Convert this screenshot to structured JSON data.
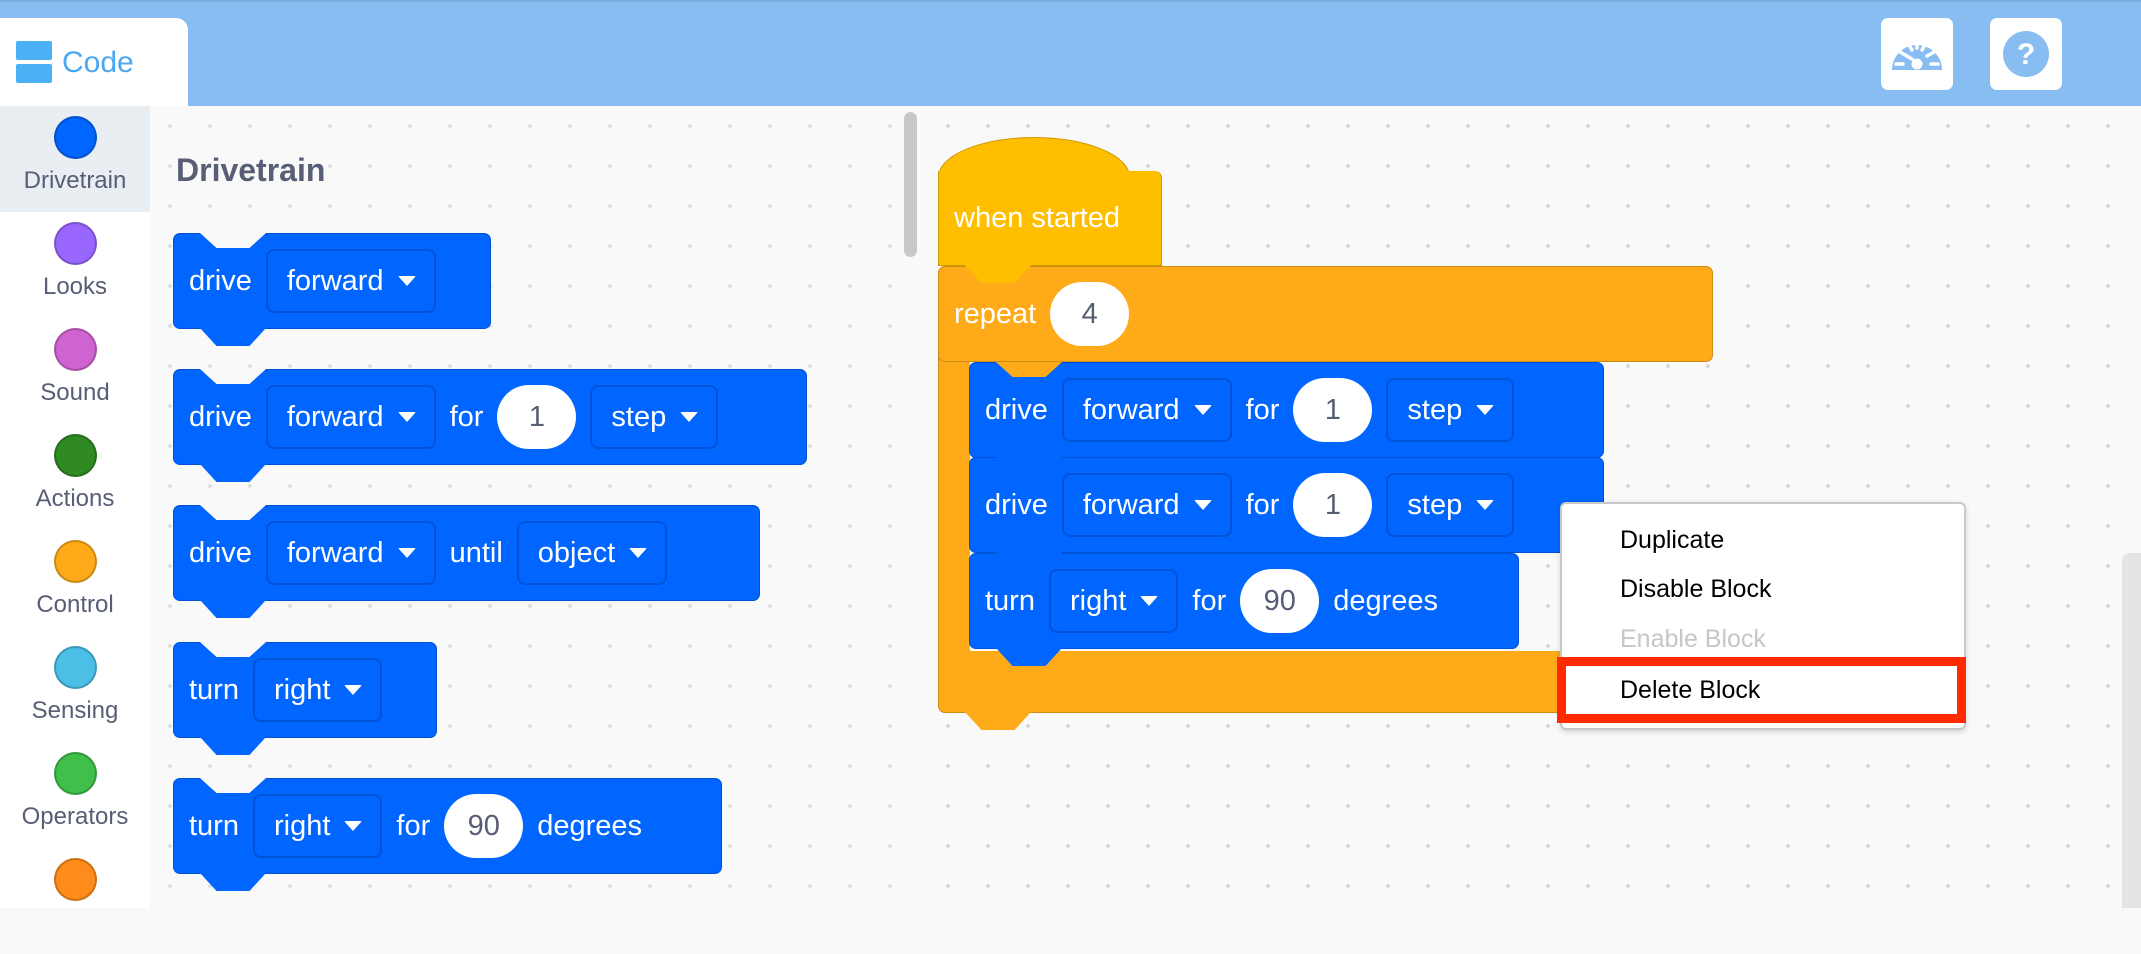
{
  "header": {
    "tab_label": "Code",
    "tab_icon": "code-blocks-icon",
    "buttons": [
      {
        "name": "dashboard-button",
        "icon": "speedometer-icon"
      },
      {
        "name": "help-button",
        "icon": "question-mark-icon"
      }
    ],
    "background": "#87bdf0"
  },
  "sidebar": {
    "selected": "Drivetrain",
    "categories": [
      {
        "label": "Drivetrain",
        "color": "#0066ff"
      },
      {
        "label": "Looks",
        "color": "#9966ff"
      },
      {
        "label": "Sound",
        "color": "#cf63cf"
      },
      {
        "label": "Actions",
        "color": "#2f8a24"
      },
      {
        "label": "Control",
        "color": "#ffab19"
      },
      {
        "label": "Sensing",
        "color": "#4cbfe6"
      },
      {
        "label": "Operators",
        "color": "#40bf4a"
      },
      {
        "label": "",
        "color": "#ff8c1a"
      }
    ]
  },
  "flyout": {
    "title": "Drivetrain",
    "blocks": [
      [
        {
          "t": "text",
          "v": "drive"
        },
        {
          "t": "dropdown",
          "v": "forward"
        }
      ],
      [
        {
          "t": "text",
          "v": "drive"
        },
        {
          "t": "dropdown",
          "v": "forward"
        },
        {
          "t": "text",
          "v": "for"
        },
        {
          "t": "number",
          "v": "1"
        },
        {
          "t": "dropdown",
          "v": "step"
        }
      ],
      [
        {
          "t": "text",
          "v": "drive"
        },
        {
          "t": "dropdown",
          "v": "forward"
        },
        {
          "t": "text",
          "v": "until"
        },
        {
          "t": "dropdown",
          "v": "object"
        }
      ],
      [
        {
          "t": "text",
          "v": "turn"
        },
        {
          "t": "dropdown",
          "v": "right"
        }
      ],
      [
        {
          "t": "text",
          "v": "turn"
        },
        {
          "t": "dropdown",
          "v": "right"
        },
        {
          "t": "text",
          "v": "for"
        },
        {
          "t": "number",
          "v": "90"
        },
        {
          "t": "text",
          "v": "degrees"
        }
      ]
    ]
  },
  "workspace": {
    "hat_label": "when started",
    "repeat": [
      {
        "t": "text",
        "v": "repeat"
      },
      {
        "t": "number",
        "v": "4"
      }
    ],
    "inner_blocks": [
      [
        {
          "t": "text",
          "v": "drive"
        },
        {
          "t": "dropdown",
          "v": "forward"
        },
        {
          "t": "text",
          "v": "for"
        },
        {
          "t": "number",
          "v": "1"
        },
        {
          "t": "dropdown",
          "v": "step"
        }
      ],
      [
        {
          "t": "text",
          "v": "drive"
        },
        {
          "t": "dropdown",
          "v": "forward"
        },
        {
          "t": "text",
          "v": "for"
        },
        {
          "t": "number",
          "v": "1"
        },
        {
          "t": "dropdown",
          "v": "step"
        }
      ],
      [
        {
          "t": "text",
          "v": "turn"
        },
        {
          "t": "dropdown",
          "v": "right"
        },
        {
          "t": "text",
          "v": "for"
        },
        {
          "t": "number",
          "v": "90"
        },
        {
          "t": "text",
          "v": "degrees"
        }
      ]
    ]
  },
  "context_menu": {
    "items": [
      {
        "label": "Duplicate",
        "enabled": true
      },
      {
        "label": "Disable Block",
        "enabled": true
      },
      {
        "label": "Enable Block",
        "enabled": false
      },
      {
        "label": "Delete Block",
        "enabled": true,
        "highlighted": true
      }
    ],
    "highlight_color": "#ff2a00"
  }
}
